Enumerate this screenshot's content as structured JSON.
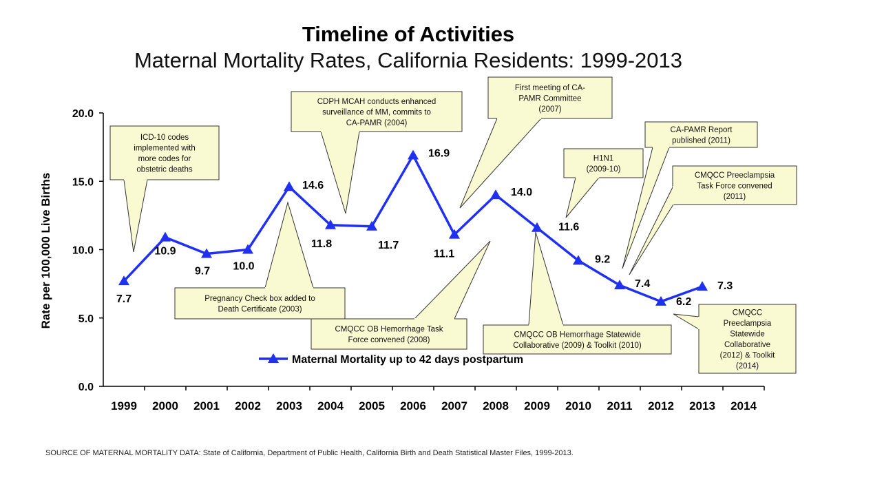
{
  "title": "Timeline of Activities",
  "subtitle": "Maternal Mortality Rates, California Residents: 1999-2013",
  "source": "SOURCE OF MATERNAL MORTALITY DATA: State of California, Department of Public Health, California Birth and Death Statistical Master Files, 1999-2013.",
  "colors": {
    "line": "#1f30f0",
    "callout_fill": "#fafad2",
    "callout_stroke": "#333333"
  },
  "chart_data": {
    "type": "line",
    "ylabel": "Rate per 100,000 Live Births",
    "xlabel": "",
    "ylim": [
      0,
      20
    ],
    "y_ticks": [
      "0.0",
      "5.0",
      "10.0",
      "15.0",
      "20.0"
    ],
    "x_ticks": [
      "1999",
      "2000",
      "2001",
      "2002",
      "2003",
      "2004",
      "2005",
      "2006",
      "2007",
      "2008",
      "2009",
      "2010",
      "2011",
      "2012",
      "2013",
      "2014"
    ],
    "grid": false,
    "legend": "bottom-center",
    "series": [
      {
        "name": "Maternal Mortality up to 42 days postpartum",
        "x": [
          "1999",
          "2000",
          "2001",
          "2002",
          "2003",
          "2004",
          "2005",
          "2006",
          "2007",
          "2008",
          "2009",
          "2010",
          "2011",
          "2012",
          "2013"
        ],
        "values": [
          7.7,
          10.9,
          9.7,
          10.0,
          14.6,
          11.8,
          11.7,
          16.9,
          11.1,
          14.0,
          11.6,
          9.2,
          7.4,
          6.2,
          7.3
        ],
        "labels": [
          "7.7",
          "10.9",
          "9.7",
          "10.0",
          "14.6",
          "11.8",
          "11.7",
          "16.9",
          "11.1",
          "14.0",
          "11.6",
          "9.2",
          "7.4",
          "6.2",
          "7.3"
        ]
      }
    ],
    "annotations": [
      {
        "lines": [
          "ICD-10 codes",
          "implemented with",
          "more codes for",
          "obstetric deaths"
        ]
      },
      {
        "lines": [
          "CDPH MCAH conducts enhanced",
          "surveillance of MM, commits to",
          "CA-PAMR (2004)"
        ]
      },
      {
        "lines": [
          "First meeting of CA-",
          "PAMR Committee",
          "(2007)"
        ]
      },
      {
        "lines": [
          "H1N1",
          "(2009-10)"
        ]
      },
      {
        "lines": [
          "CA-PAMR Report",
          "published (2011)"
        ]
      },
      {
        "lines": [
          "CMQCC Preeclampsia",
          "Task Force convened",
          "(2011)"
        ]
      },
      {
        "lines": [
          "Pregnancy Check box added to",
          "Death Certificate (2003)"
        ]
      },
      {
        "lines": [
          "CMQCC OB Hemorrhage Task",
          "Force convened (2008)"
        ]
      },
      {
        "lines": [
          "CMQCC OB Hemorrhage Statewide",
          "Collaborative (2009) & Toolkit (2010)"
        ]
      },
      {
        "lines": [
          "CMQCC",
          "Preeclampsia",
          "Statewide",
          "Collaborative",
          "(2012) & Toolkit",
          "(2014)"
        ]
      }
    ]
  }
}
